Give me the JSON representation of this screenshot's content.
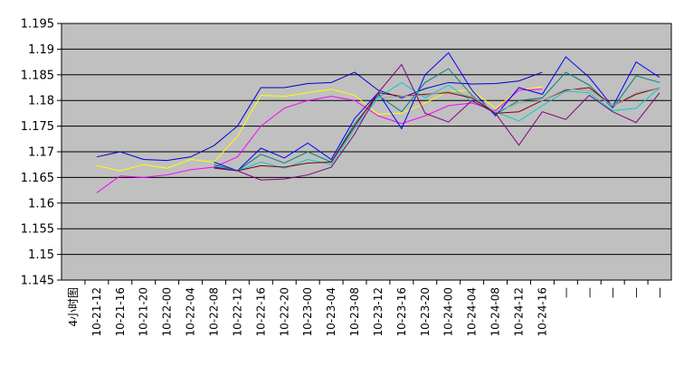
{
  "chart_data": {
    "type": "line",
    "title": "",
    "xlabel": "",
    "ylabel": "",
    "ylim": [
      1.145,
      1.195
    ],
    "y_ticks": [
      "1.145",
      "1.15",
      "1.155",
      "1.16",
      "1.165",
      "1.17",
      "1.175",
      "1.18",
      "1.185",
      "1.19",
      "1.195"
    ],
    "grid": true,
    "legend": "none",
    "x_labels": [
      "4小时图",
      "10-21-12",
      "10-21-16",
      "10-21-20",
      "10-22-00",
      "10-22-04",
      "10-22-08",
      "10-22-12",
      "10-22-16",
      "10-22-20",
      "10-23-00",
      "10-23-04",
      "10-23-08",
      "10-23-12",
      "10-23-16",
      "10-23-20",
      "10-24-00",
      "10-24-04",
      "10-24-08",
      "10-24-12",
      "10-24-16",
      "—",
      "—",
      "—",
      "—",
      "—"
    ],
    "series": [
      {
        "color": "#0000cc",
        "values": [
          null,
          1.169,
          1.17,
          1.1685,
          1.1683,
          1.169,
          1.1712,
          1.175,
          1.1825,
          1.1825,
          1.1833,
          1.1835,
          1.1855,
          1.182,
          1.1805,
          1.1823,
          1.1835,
          1.1832,
          1.1833,
          1.1838,
          1.1855,
          null,
          null,
          null,
          null,
          null
        ]
      },
      {
        "color": "#ffff00",
        "values": [
          null,
          1.1673,
          1.1663,
          1.1675,
          1.1668,
          1.1685,
          1.168,
          1.173,
          1.181,
          1.1808,
          1.1815,
          1.1822,
          1.181,
          1.1773,
          1.1775,
          1.1795,
          1.1818,
          1.182,
          1.1785,
          1.182,
          1.1827,
          null,
          null,
          null,
          null,
          null
        ]
      },
      {
        "color": "#ff00ff",
        "values": [
          null,
          1.162,
          1.1653,
          1.165,
          1.1655,
          1.1665,
          1.167,
          1.169,
          1.175,
          1.1785,
          1.18,
          1.1808,
          1.18,
          1.177,
          1.1755,
          1.177,
          1.179,
          1.1795,
          1.178,
          1.182,
          1.1822,
          null,
          null,
          null,
          null,
          null
        ]
      },
      {
        "color": "#0000ff",
        "values": [
          null,
          null,
          null,
          null,
          null,
          null,
          1.168,
          1.1663,
          1.1707,
          1.1688,
          1.1717,
          1.1685,
          1.1765,
          1.1815,
          1.1745,
          1.185,
          1.1893,
          1.182,
          1.177,
          1.1825,
          1.1812,
          1.1885,
          1.1845,
          1.1788,
          1.1875,
          1.1845
        ]
      },
      {
        "color": "#008080",
        "values": [
          null,
          null,
          null,
          null,
          null,
          null,
          1.1675,
          1.1663,
          1.1695,
          1.1678,
          1.17,
          1.168,
          1.1755,
          1.181,
          1.1778,
          1.1835,
          1.1862,
          1.181,
          1.1773,
          1.18,
          1.1805,
          1.1855,
          1.183,
          1.1785,
          1.1848,
          1.1835
        ]
      },
      {
        "color": "#00cccc",
        "values": [
          null,
          null,
          null,
          null,
          null,
          null,
          1.1672,
          1.1663,
          1.168,
          1.1668,
          1.1685,
          1.1675,
          1.1745,
          1.1805,
          1.1835,
          1.1805,
          1.183,
          1.1798,
          1.1778,
          1.176,
          1.179,
          1.1818,
          1.1815,
          1.178,
          1.1785,
          1.1825
        ]
      },
      {
        "color": "#800000",
        "values": [
          null,
          null,
          null,
          null,
          null,
          null,
          1.167,
          1.1663,
          1.1673,
          1.167,
          1.1678,
          1.168,
          1.175,
          1.1815,
          1.1808,
          1.1812,
          1.1815,
          1.1805,
          1.1775,
          1.1778,
          1.18,
          1.182,
          1.1825,
          1.179,
          1.1812,
          1.1825
        ]
      },
      {
        "color": "#800080",
        "values": [
          null,
          null,
          null,
          null,
          null,
          null,
          1.1668,
          1.1663,
          1.1645,
          1.1647,
          1.1655,
          1.167,
          1.1735,
          1.1815,
          1.187,
          1.1775,
          1.1758,
          1.18,
          1.1775,
          1.1713,
          1.1778,
          1.1763,
          1.181,
          1.1778,
          1.1757,
          1.1815
        ]
      },
      {
        "color": "#a0a0a0",
        "values": [
          null,
          null,
          null,
          null,
          null,
          null,
          null,
          null,
          null,
          null,
          null,
          null,
          null,
          1.1805,
          1.1808,
          1.181,
          1.1818,
          1.1808,
          1.1778,
          1.1795,
          1.18,
          1.1822,
          1.182,
          1.179,
          1.1815,
          1.1825
        ]
      }
    ]
  }
}
